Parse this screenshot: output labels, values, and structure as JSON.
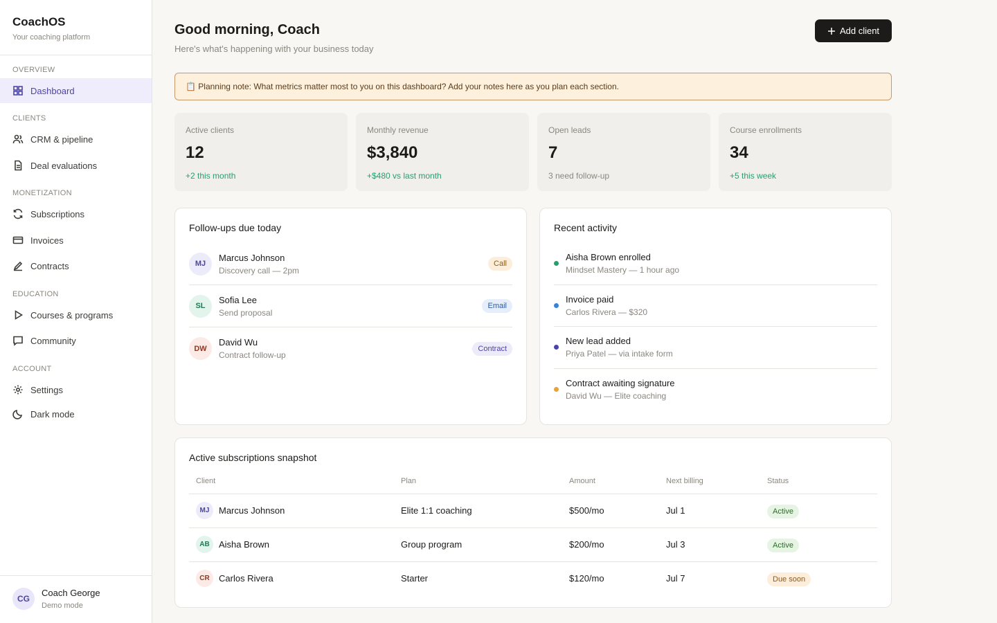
{
  "sidebar": {
    "brand": "CoachOS",
    "tagline": "Your coaching platform",
    "sections": [
      {
        "title": "OVERVIEW",
        "items": [
          "Dashboard"
        ]
      },
      {
        "title": "CLIENTS",
        "items": [
          "CRM & pipeline",
          "Deal evaluations"
        ]
      },
      {
        "title": "MONETIZATION",
        "items": [
          "Subscriptions",
          "Invoices",
          "Contracts"
        ]
      },
      {
        "title": "EDUCATION",
        "items": [
          "Courses & programs",
          "Community"
        ]
      },
      {
        "title": "ACCOUNT",
        "items": [
          "Settings",
          "Dark mode"
        ]
      }
    ],
    "user": {
      "initials": "CG",
      "name": "Coach George",
      "mode": "Demo mode"
    }
  },
  "header": {
    "title": "Good morning, Coach",
    "subtitle": "Here's what's happening with your business today",
    "button": "Add client"
  },
  "note": "📋 Planning note: What metrics matter most to you on this dashboard? Add your notes here as you plan each section.",
  "stats": [
    {
      "label": "Active clients",
      "value": "12",
      "delta": "+2 this month"
    },
    {
      "label": "Monthly revenue",
      "value": "$3,840",
      "delta": "+$480 vs last month"
    },
    {
      "label": "Open leads",
      "value": "7",
      "delta": "3 need follow-up"
    },
    {
      "label": "Course enrollments",
      "value": "34",
      "delta": "+5 this week"
    }
  ],
  "followups": {
    "title": "Follow-ups due today",
    "items": [
      {
        "initials": "MJ",
        "name": "Marcus Johnson",
        "detail": "Discovery call — 2pm",
        "tag": "Call"
      },
      {
        "initials": "SL",
        "name": "Sofia Lee",
        "detail": "Send proposal",
        "tag": "Email"
      },
      {
        "initials": "DW",
        "name": "David Wu",
        "detail": "Contract follow-up",
        "tag": "Contract"
      }
    ]
  },
  "activity": {
    "title": "Recent activity",
    "items": [
      {
        "title": "Aisha Brown enrolled",
        "detail": "Mindset Mastery — 1 hour ago"
      },
      {
        "title": "Invoice paid",
        "detail": "Carlos Rivera — $320"
      },
      {
        "title": "New lead added",
        "detail": "Priya Patel — via intake form"
      },
      {
        "title": "Contract awaiting signature",
        "detail": "David Wu — Elite coaching"
      }
    ]
  },
  "subscriptions": {
    "title": "Active subscriptions snapshot",
    "columns": [
      "Client",
      "Plan",
      "Amount",
      "Next billing",
      "Status"
    ],
    "rows": [
      {
        "initials": "MJ",
        "client": "Marcus Johnson",
        "plan": "Elite 1:1 coaching",
        "amount": "$500/mo",
        "next": "Jul 1",
        "status": "Active"
      },
      {
        "initials": "AB",
        "client": "Aisha Brown",
        "plan": "Group program",
        "amount": "$200/mo",
        "next": "Jul 3",
        "status": "Active"
      },
      {
        "initials": "CR",
        "client": "Carlos Rivera",
        "plan": "Starter",
        "amount": "$120/mo",
        "next": "Jul 7",
        "status": "Due soon"
      }
    ]
  }
}
